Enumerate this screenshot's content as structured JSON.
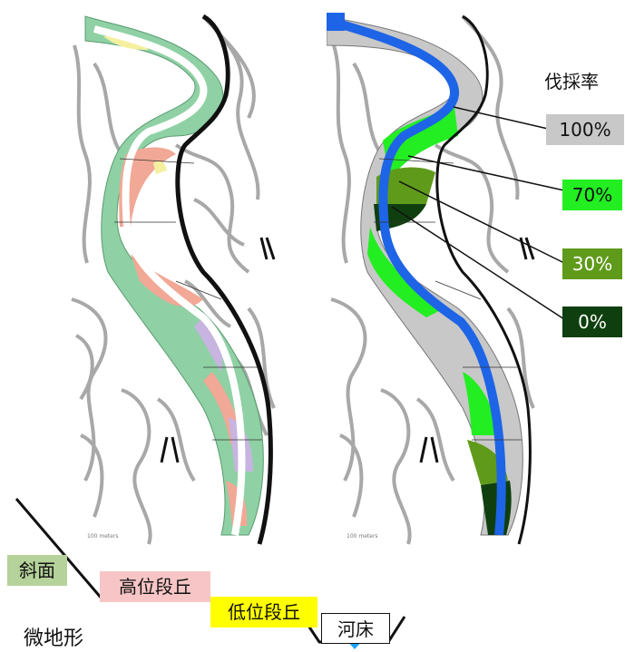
{
  "legend": {
    "title": "伐採率",
    "items": [
      {
        "label": "100%",
        "color": "#c8c8c8",
        "text_color": "#111111"
      },
      {
        "label": "70%",
        "color": "#22ee22",
        "text_color": "#111111"
      },
      {
        "label": "30%",
        "color": "#5f9a1a",
        "text_color": "#ffffff"
      },
      {
        "label": "0%",
        "color": "#0f3f0f",
        "text_color": "#ffffff"
      }
    ]
  },
  "maps": {
    "left_scale": "100 meters",
    "right_scale": "100 meters"
  },
  "profile": {
    "title": "微地形",
    "terms": [
      {
        "label": "斜面",
        "color": "#b5d29a"
      },
      {
        "label": "高位段丘",
        "color": "#f7c5c5"
      },
      {
        "label": "低位段丘",
        "color": "#ffff00"
      },
      {
        "label": "河床",
        "color": "#ffffff"
      }
    ]
  },
  "colors": {
    "river": "#1e64e6",
    "contour": "#a8a8a8",
    "cliff": "#111111",
    "slope_green": "#8fd1a4",
    "terrace_pink": "#f2a896",
    "terrace_purple": "#c7b4e0",
    "terrace_yellow": "#f5f0a0",
    "water_marker": "#1aa3ff"
  }
}
